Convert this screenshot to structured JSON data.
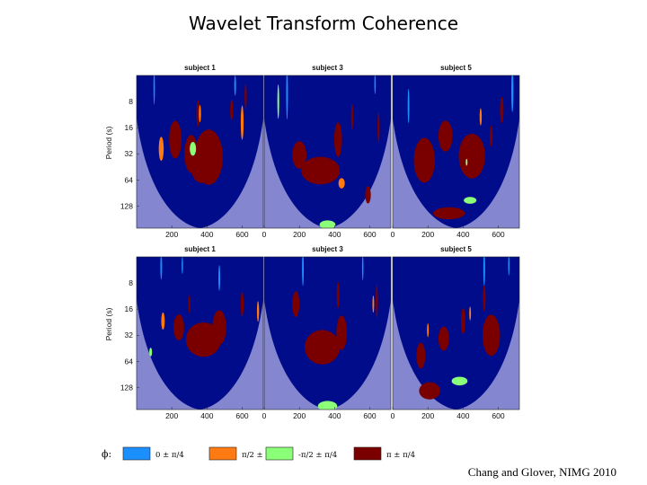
{
  "slide": {
    "title": "Wavelet Transform Coherence",
    "citation": "Chang and Glover, NIMG 2010"
  },
  "colors": {
    "background_inside_cone": "#000c8a",
    "outside_cone_shade": "#8486cf",
    "phase_0": "#1c8fff",
    "phase_pi2": "#ff7a12",
    "phase_neg_pi2": "#8cff78",
    "phase_pi": "#7a0000"
  },
  "chart_data": {
    "type": "heatmap",
    "description_units": "x = time (s), y = period (s, log scale)",
    "ylabel": "Period (s)",
    "x_ticks": [
      0,
      200,
      400,
      600
    ],
    "y_ticks": [
      8,
      16,
      32,
      64,
      128
    ],
    "xlim": [
      0,
      720
    ],
    "ylim_period": [
      4,
      230
    ],
    "y_scale": "log",
    "legend": {
      "symbol": "ϕ:",
      "placement": "bottom",
      "entries": [
        {
          "label": "0 ± π/4",
          "color": "#1c8fff"
        },
        {
          "label": "π/2 ± π/4",
          "color": "#ff7a12"
        },
        {
          "label": "-π/2 ± π/4",
          "color": "#8cff78"
        },
        {
          "label": "π ± π/4",
          "color": "#7a0000"
        }
      ]
    },
    "rows": [
      {
        "panels": [
          {
            "title": "subject 1",
            "regions": [
              {
                "phase": "pi",
                "t": 410,
                "p": 35,
                "rx": 80,
                "ry": 0.32
              },
              {
                "phase": "pi",
                "t": 310,
                "p": 32,
                "rx": 38,
                "ry": 0.22
              },
              {
                "phase": "pi",
                "t": 220,
                "p": 22,
                "rx": 35,
                "ry": 0.22
              },
              {
                "phase": "pi",
                "t": 370,
                "p": 46,
                "rx": 60,
                "ry": 0.18
              },
              {
                "phase": "pi",
                "t": 350,
                "p": 11,
                "rx": 10,
                "ry": 0.15
              },
              {
                "phase": "pi",
                "t": 540,
                "p": 10,
                "rx": 8,
                "ry": 0.12
              },
              {
                "phase": "pi",
                "t": 620,
                "p": 7,
                "rx": 6,
                "ry": 0.15
              },
              {
                "phase": "pi_2",
                "t": 140,
                "p": 28,
                "rx": 14,
                "ry": 0.14
              },
              {
                "phase": "pi_2",
                "t": 600,
                "p": 14,
                "rx": 8,
                "ry": 0.2
              },
              {
                "phase": "pi_2",
                "t": 360,
                "p": 11,
                "rx": 6,
                "ry": 0.1
              },
              {
                "phase": "neg_pi2",
                "t": 320,
                "p": 28,
                "rx": 18,
                "ry": 0.08
              },
              {
                "phase": "zero",
                "t": 100,
                "p": 5.5,
                "rx": 4,
                "ry": 0.2
              },
              {
                "phase": "zero",
                "t": 560,
                "p": 5.2,
                "rx": 5,
                "ry": 0.12
              }
            ]
          },
          {
            "title": "subject 3",
            "regions": [
              {
                "phase": "pi",
                "t": 320,
                "p": 50,
                "rx": 110,
                "ry": 0.16
              },
              {
                "phase": "pi",
                "t": 200,
                "p": 33,
                "rx": 40,
                "ry": 0.16
              },
              {
                "phase": "pi",
                "t": 420,
                "p": 22,
                "rx": 22,
                "ry": 0.2
              },
              {
                "phase": "pi",
                "t": 590,
                "p": 95,
                "rx": 16,
                "ry": 0.1
              },
              {
                "phase": "pi",
                "t": 650,
                "p": 16,
                "rx": 6,
                "ry": 0.18
              },
              {
                "phase": "pi",
                "t": 500,
                "p": 12,
                "rx": 6,
                "ry": 0.15
              },
              {
                "phase": "pi_2",
                "t": 440,
                "p": 70,
                "rx": 18,
                "ry": 0.06
              },
              {
                "phase": "neg_pi2",
                "t": 360,
                "p": 210,
                "rx": 45,
                "ry": 0.05
              },
              {
                "phase": "neg_pi2",
                "t": 80,
                "p": 8,
                "rx": 5,
                "ry": 0.2
              },
              {
                "phase": "zero",
                "t": 130,
                "p": 6.5,
                "rx": 5,
                "ry": 0.3
              },
              {
                "phase": "zero",
                "t": 630,
                "p": 5,
                "rx": 4,
                "ry": 0.12
              }
            ]
          },
          {
            "title": "subject 5",
            "regions": [
              {
                "phase": "pi",
                "t": 180,
                "p": 38,
                "rx": 60,
                "ry": 0.26
              },
              {
                "phase": "pi",
                "t": 450,
                "p": 34,
                "rx": 75,
                "ry": 0.26
              },
              {
                "phase": "pi",
                "t": 300,
                "p": 20,
                "rx": 40,
                "ry": 0.18
              },
              {
                "phase": "pi",
                "t": 320,
                "p": 155,
                "rx": 90,
                "ry": 0.07
              },
              {
                "phase": "pi",
                "t": 620,
                "p": 10,
                "rx": 10,
                "ry": 0.15
              },
              {
                "phase": "pi",
                "t": 560,
                "p": 20,
                "rx": 8,
                "ry": 0.12
              },
              {
                "phase": "pi_2",
                "t": 500,
                "p": 12,
                "rx": 6,
                "ry": 0.1
              },
              {
                "phase": "neg_pi2",
                "t": 440,
                "p": 110,
                "rx": 36,
                "ry": 0.04
              },
              {
                "phase": "neg_pi2",
                "t": 420,
                "p": 40,
                "rx": 5,
                "ry": 0.04
              },
              {
                "phase": "zero",
                "t": 680,
                "p": 6,
                "rx": 6,
                "ry": 0.25
              },
              {
                "phase": "zero",
                "t": 90,
                "p": 9,
                "rx": 5,
                "ry": 0.2
              }
            ]
          }
        ]
      },
      {
        "panels": [
          {
            "title": "subject 1",
            "regions": [
              {
                "phase": "pi",
                "t": 380,
                "p": 36,
                "rx": 100,
                "ry": 0.2
              },
              {
                "phase": "pi",
                "t": 470,
                "p": 26,
                "rx": 40,
                "ry": 0.2
              },
              {
                "phase": "pi",
                "t": 240,
                "p": 26,
                "rx": 30,
                "ry": 0.15
              },
              {
                "phase": "pi",
                "t": 600,
                "p": 14,
                "rx": 8,
                "ry": 0.15
              },
              {
                "phase": "pi",
                "t": 300,
                "p": 14,
                "rx": 6,
                "ry": 0.1
              },
              {
                "phase": "pi_2",
                "t": 150,
                "p": 22,
                "rx": 10,
                "ry": 0.1
              },
              {
                "phase": "pi_2",
                "t": 690,
                "p": 17,
                "rx": 6,
                "ry": 0.12
              },
              {
                "phase": "neg_pi2",
                "t": 80,
                "p": 50,
                "rx": 8,
                "ry": 0.05
              },
              {
                "phase": "zero",
                "t": 140,
                "p": 5.2,
                "rx": 5,
                "ry": 0.15
              },
              {
                "phase": "zero",
                "t": 470,
                "p": 7,
                "rx": 5,
                "ry": 0.15
              },
              {
                "phase": "zero",
                "t": 260,
                "p": 5,
                "rx": 4,
                "ry": 0.1
              }
            ]
          },
          {
            "title": "subject 3",
            "regions": [
              {
                "phase": "pi",
                "t": 330,
                "p": 44,
                "rx": 100,
                "ry": 0.2
              },
              {
                "phase": "pi",
                "t": 440,
                "p": 30,
                "rx": 30,
                "ry": 0.2
              },
              {
                "phase": "pi",
                "t": 180,
                "p": 14,
                "rx": 20,
                "ry": 0.15
              },
              {
                "phase": "pi",
                "t": 640,
                "p": 13,
                "rx": 6,
                "ry": 0.2
              },
              {
                "phase": "pi",
                "t": 420,
                "p": 11,
                "rx": 8,
                "ry": 0.15
              },
              {
                "phase": "pi_2",
                "t": 620,
                "p": 14,
                "rx": 5,
                "ry": 0.1
              },
              {
                "phase": "neg_pi2",
                "t": 360,
                "p": 210,
                "rx": 55,
                "ry": 0.06
              },
              {
                "phase": "zero",
                "t": 220,
                "p": 5.5,
                "rx": 5,
                "ry": 0.2
              },
              {
                "phase": "zero",
                "t": 560,
                "p": 5.3,
                "rx": 4,
                "ry": 0.15
              }
            ]
          },
          {
            "title": "subject 5",
            "regions": [
              {
                "phase": "pi",
                "t": 560,
                "p": 32,
                "rx": 50,
                "ry": 0.24
              },
              {
                "phase": "pi",
                "t": 290,
                "p": 35,
                "rx": 30,
                "ry": 0.14
              },
              {
                "phase": "pi",
                "t": 160,
                "p": 55,
                "rx": 25,
                "ry": 0.15
              },
              {
                "phase": "pi",
                "t": 210,
                "p": 140,
                "rx": 60,
                "ry": 0.1
              },
              {
                "phase": "pi",
                "t": 400,
                "p": 22,
                "rx": 12,
                "ry": 0.15
              },
              {
                "phase": "pi",
                "t": 520,
                "p": 12,
                "rx": 8,
                "ry": 0.15
              },
              {
                "phase": "neg_pi2",
                "t": 380,
                "p": 108,
                "rx": 45,
                "ry": 0.05
              },
              {
                "phase": "pi_2",
                "t": 440,
                "p": 18,
                "rx": 5,
                "ry": 0.08
              },
              {
                "phase": "pi_2",
                "t": 200,
                "p": 28,
                "rx": 5,
                "ry": 0.08
              },
              {
                "phase": "zero",
                "t": 520,
                "p": 5.5,
                "rx": 5,
                "ry": 0.2
              },
              {
                "phase": "zero",
                "t": 660,
                "p": 5,
                "rx": 4,
                "ry": 0.12
              }
            ]
          }
        ]
      }
    ]
  }
}
